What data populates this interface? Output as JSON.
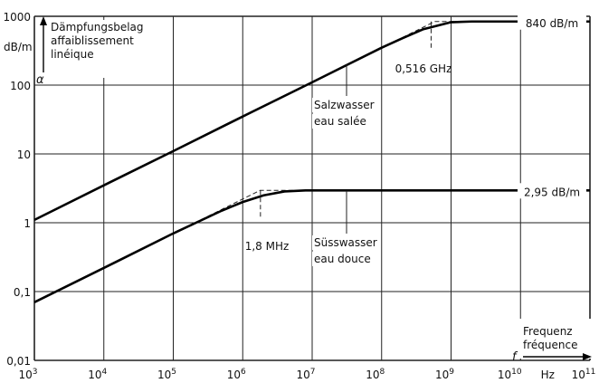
{
  "chart_data": {
    "type": "line",
    "x_scale": "log",
    "y_scale": "log",
    "xlim": [
      1000,
      100000000000
    ],
    "ylim": [
      0.01,
      1000
    ],
    "grid": true,
    "y_axis_symbol": "α",
    "y_axis_unit": "dB/m",
    "y_axis_title_lines": [
      "Dämpfungsbelag",
      "affaiblissement",
      "linéique"
    ],
    "x_axis_symbol": "f",
    "x_axis_unit": "Hz",
    "x_axis_title_lines": [
      "Frequenz",
      "fréquence"
    ],
    "y_tick_labels": [
      "1000",
      "100",
      "10",
      "1",
      "0,1",
      "0,01"
    ],
    "y_tick_values": [
      1000,
      100,
      10,
      1,
      0.1,
      0.01
    ],
    "x_tick_values": [
      1000,
      10000,
      100000,
      1000000,
      10000000,
      100000000,
      1000000000,
      10000000000,
      100000000000
    ],
    "x_tick_exponents": [
      "3",
      "4",
      "5",
      "6",
      "7",
      "8",
      "9",
      "10",
      "11"
    ],
    "x_tick_base": "10",
    "series": [
      {
        "label_lines": [
          "Salzwasser",
          "eau salée"
        ],
        "end_label": "840 dB/m",
        "corner_label": "0,516 GHz",
        "plateau": 840,
        "corner_freq": 516000000,
        "x": [
          1000,
          10000,
          100000,
          1000000,
          10000000,
          100000000,
          200000000,
          400000000,
          1000000000,
          2000000000,
          100000000000
        ],
        "y": [
          1.1,
          3.5,
          11,
          35,
          110,
          350,
          480,
          650,
          820,
          840,
          840
        ]
      },
      {
        "label_lines": [
          "Süsswasser",
          "eau douce"
        ],
        "end_label": "2,95 dB/m",
        "corner_label": "1,8 MHz",
        "plateau": 2.95,
        "corner_freq": 1800000,
        "x": [
          1000,
          10000,
          100000,
          500000,
          1000000,
          2000000,
          4000000,
          8000000,
          100000000000
        ],
        "y": [
          0.07,
          0.22,
          0.7,
          1.5,
          2.0,
          2.5,
          2.85,
          2.95,
          2.95
        ]
      }
    ]
  }
}
